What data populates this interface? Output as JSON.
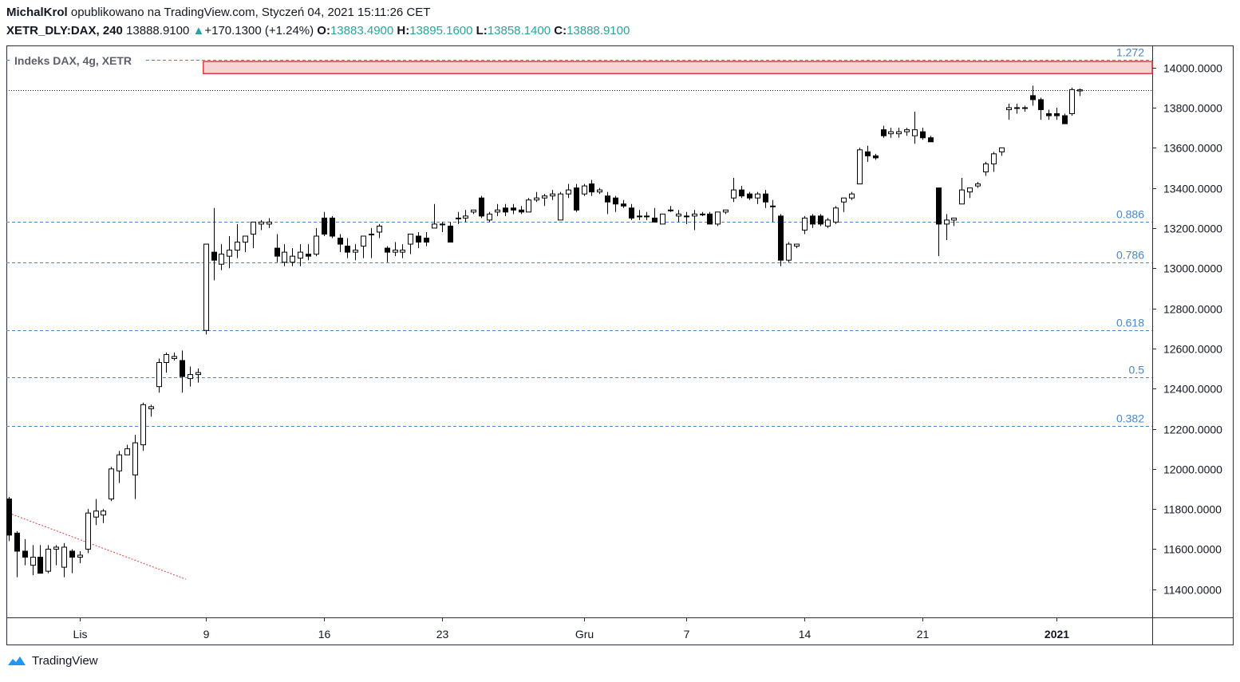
{
  "header": {
    "author": "MichalKrol",
    "published_text": "opublikowano na TradingView.com, Styczeń 04, 2021 15:11:26 CET",
    "symbol": "XETR_DLY:DAX, 240",
    "last_price": "13888.9100",
    "change_arrow": "▲",
    "change": "+170.1300 (+1.24%)",
    "open_label": "O:",
    "open": "13883.4900",
    "high_label": "H:",
    "high": "13895.1600",
    "low_label": "L:",
    "low": "13858.1400",
    "close_label": "C:",
    "close": "13888.9100"
  },
  "legend_title": "Indeks DAX, 4g, XETR",
  "footer": {
    "brand": "TradingView",
    "logo_icon": "tradingview-logo-icon"
  },
  "colors": {
    "fib_line": "#4a86c8",
    "up_body": "#ffffff",
    "down_body": "#000000",
    "zone_fill": "#f8d3d3",
    "zone_border": "#e03b3b",
    "trendline": "#e03b3b",
    "accent": "#26a69a"
  },
  "chart_data": {
    "type": "candlestick",
    "ylim": [
      11260,
      14110
    ],
    "y_ticks": [
      {
        "value": 11400,
        "label": "11400.0000"
      },
      {
        "value": 11600,
        "label": "11600.0000"
      },
      {
        "value": 11800,
        "label": "11800.0000"
      },
      {
        "value": 12000,
        "label": "12000.0000"
      },
      {
        "value": 12200,
        "label": "12200.0000"
      },
      {
        "value": 12400,
        "label": "12400.0000"
      },
      {
        "value": 12600,
        "label": "12600.0000"
      },
      {
        "value": 12800,
        "label": "12800.0000"
      },
      {
        "value": 13000,
        "label": "13000.0000"
      },
      {
        "value": 13200,
        "label": "13200.0000"
      },
      {
        "value": 13400,
        "label": "13400.0000"
      },
      {
        "value": 13600,
        "label": "13600.0000"
      },
      {
        "value": 13800,
        "label": "13800.0000"
      },
      {
        "value": 14000,
        "label": "14000.0000"
      }
    ],
    "x_ticks": [
      {
        "bar": 9,
        "label": "Lis",
        "bold": false
      },
      {
        "bar": 25,
        "label": "9",
        "bold": false
      },
      {
        "bar": 40,
        "label": "16",
        "bold": false
      },
      {
        "bar": 55,
        "label": "23",
        "bold": false
      },
      {
        "bar": 73,
        "label": "Gru",
        "bold": false
      },
      {
        "bar": 86,
        "label": "7",
        "bold": false
      },
      {
        "bar": 101,
        "label": "14",
        "bold": false
      },
      {
        "bar": 116,
        "label": "21",
        "bold": false
      },
      {
        "bar": 133,
        "label": "2021",
        "bold": true
      }
    ],
    "fib_levels": [
      {
        "label": "1.272",
        "value": 14040
      },
      {
        "label": "0.886",
        "value": 13230
      },
      {
        "label": "0.786",
        "value": 13030
      },
      {
        "label": "0.618",
        "value": 12690
      },
      {
        "label": "0.5",
        "value": 12455
      },
      {
        "label": "0.382",
        "value": 12215
      }
    ],
    "last_price_line": 13888.91,
    "resistance_zone": {
      "from_bar": 24.7,
      "low": 13970,
      "high": 14030
    },
    "trendline": {
      "start_bar": 0,
      "start_value": 11780,
      "end_bar": 22.5,
      "end_value": 11450
    },
    "ohlc": [
      [
        11850,
        11860,
        11640,
        11670
      ],
      [
        11680,
        11690,
        11460,
        11590
      ],
      [
        11590,
        11650,
        11520,
        11560
      ],
      [
        11520,
        11620,
        11470,
        11560
      ],
      [
        11560,
        11620,
        11480,
        11480
      ],
      [
        11490,
        11620,
        11480,
        11600
      ],
      [
        11600,
        11620,
        11520,
        11610
      ],
      [
        11510,
        11630,
        11460,
        11610
      ],
      [
        11590,
        11600,
        11480,
        11560
      ],
      [
        11560,
        11590,
        11530,
        11570
      ],
      [
        11600,
        11800,
        11580,
        11780
      ],
      [
        11760,
        11850,
        11720,
        11790
      ],
      [
        11770,
        11800,
        11730,
        11790
      ],
      [
        11850,
        12010,
        11840,
        12000
      ],
      [
        11990,
        12090,
        11930,
        12070
      ],
      [
        12070,
        12120,
        12070,
        12100
      ],
      [
        11970,
        12170,
        11850,
        12130
      ],
      [
        12120,
        12330,
        12090,
        12320
      ],
      [
        12300,
        12320,
        12260,
        12310
      ],
      [
        12410,
        12550,
        12380,
        12530
      ],
      [
        12530,
        12580,
        12480,
        12570
      ],
      [
        12550,
        12580,
        12540,
        12560
      ],
      [
        12540,
        12590,
        12380,
        12460
      ],
      [
        12450,
        12510,
        12410,
        12470
      ],
      [
        12470,
        12500,
        12430,
        12480
      ],
      [
        12690,
        13100,
        12670,
        13120
      ],
      [
        13080,
        13300,
        12940,
        13040
      ],
      [
        13020,
        13120,
        12990,
        13070
      ],
      [
        13060,
        13160,
        13000,
        13090
      ],
      [
        13090,
        13220,
        13050,
        13130
      ],
      [
        13130,
        13160,
        13080,
        13160
      ],
      [
        13170,
        13230,
        13100,
        13230
      ],
      [
        13220,
        13240,
        13190,
        13230
      ],
      [
        13220,
        13250,
        13200,
        13230
      ],
      [
        13100,
        13170,
        13030,
        13060
      ],
      [
        13030,
        13120,
        13010,
        13080
      ],
      [
        13030,
        13100,
        13010,
        13060
      ],
      [
        13050,
        13120,
        13010,
        13080
      ],
      [
        13070,
        13120,
        13040,
        13060
      ],
      [
        13070,
        13200,
        13060,
        13160
      ],
      [
        13250,
        13280,
        13160,
        13170
      ],
      [
        13250,
        13260,
        13150,
        13160
      ],
      [
        13150,
        13170,
        13080,
        13120
      ],
      [
        13110,
        13150,
        13050,
        13080
      ],
      [
        13080,
        13120,
        13040,
        13090
      ],
      [
        13110,
        13160,
        13050,
        13160
      ],
      [
        13170,
        13200,
        13050,
        13170
      ],
      [
        13180,
        13220,
        13150,
        13210
      ],
      [
        13100,
        13110,
        13030,
        13080
      ],
      [
        13080,
        13130,
        13060,
        13090
      ],
      [
        13080,
        13120,
        13050,
        13090
      ],
      [
        13120,
        13160,
        13070,
        13170
      ],
      [
        13160,
        13180,
        13100,
        13130
      ],
      [
        13150,
        13180,
        13110,
        13130
      ],
      [
        13200,
        13320,
        13200,
        13220
      ],
      [
        13220,
        13230,
        13180,
        13220
      ],
      [
        13210,
        13230,
        13130,
        13130
      ],
      [
        13250,
        13280,
        13220,
        13250
      ],
      [
        13250,
        13290,
        13230,
        13260
      ],
      [
        13280,
        13290,
        13270,
        13290
      ],
      [
        13350,
        13360,
        13250,
        13260
      ],
      [
        13240,
        13280,
        13230,
        13270
      ],
      [
        13280,
        13320,
        13260,
        13290
      ],
      [
        13300,
        13320,
        13260,
        13280
      ],
      [
        13300,
        13320,
        13270,
        13290
      ],
      [
        13290,
        13310,
        13270,
        13280
      ],
      [
        13280,
        13350,
        13280,
        13340
      ],
      [
        13340,
        13380,
        13330,
        13350
      ],
      [
        13350,
        13370,
        13310,
        13360
      ],
      [
        13360,
        13390,
        13340,
        13370
      ],
      [
        13240,
        13380,
        13240,
        13370
      ],
      [
        13370,
        13420,
        13350,
        13390
      ],
      [
        13400,
        13420,
        13280,
        13290
      ],
      [
        13370,
        13420,
        13360,
        13410
      ],
      [
        13420,
        13440,
        13360,
        13380
      ],
      [
        13380,
        13400,
        13370,
        13390
      ],
      [
        13360,
        13380,
        13270,
        13330
      ],
      [
        13350,
        13360,
        13280,
        13320
      ],
      [
        13320,
        13340,
        13300,
        13310
      ],
      [
        13300,
        13320,
        13240,
        13250
      ],
      [
        13260,
        13290,
        13240,
        13260
      ],
      [
        13260,
        13280,
        13240,
        13260
      ],
      [
        13250,
        13300,
        13230,
        13230
      ],
      [
        13220,
        13270,
        13220,
        13270
      ],
      [
        13290,
        13310,
        13280,
        13290
      ],
      [
        13260,
        13290,
        13230,
        13270
      ],
      [
        13260,
        13280,
        13220,
        13260
      ],
      [
        13260,
        13290,
        13190,
        13270
      ],
      [
        13270,
        13280,
        13260,
        13270
      ],
      [
        13270,
        13280,
        13220,
        13220
      ],
      [
        13220,
        13280,
        13210,
        13280
      ],
      [
        13280,
        13290,
        13270,
        13290
      ],
      [
        13350,
        13450,
        13330,
        13390
      ],
      [
        13390,
        13410,
        13350,
        13360
      ],
      [
        13370,
        13380,
        13340,
        13350
      ],
      [
        13350,
        13380,
        13320,
        13370
      ],
      [
        13370,
        13390,
        13300,
        13330
      ],
      [
        13310,
        13340,
        13230,
        13310
      ],
      [
        13260,
        13270,
        13010,
        13040
      ],
      [
        13040,
        13130,
        13030,
        13120
      ],
      [
        13110,
        13120,
        13100,
        13120
      ],
      [
        13190,
        13260,
        13170,
        13250
      ],
      [
        13260,
        13270,
        13200,
        13220
      ],
      [
        13260,
        13270,
        13210,
        13220
      ],
      [
        13210,
        13250,
        13200,
        13240
      ],
      [
        13230,
        13310,
        13220,
        13300
      ],
      [
        13330,
        13350,
        13280,
        13350
      ],
      [
        13350,
        13380,
        13340,
        13370
      ],
      [
        13420,
        13600,
        13420,
        13590
      ],
      [
        13580,
        13610,
        13530,
        13560
      ],
      [
        13560,
        13570,
        13540,
        13550
      ],
      [
        13690,
        13710,
        13650,
        13660
      ],
      [
        13670,
        13700,
        13650,
        13680
      ],
      [
        13670,
        13700,
        13650,
        13680
      ],
      [
        13680,
        13700,
        13660,
        13690
      ],
      [
        13660,
        13780,
        13620,
        13690
      ],
      [
        13680,
        13700,
        13640,
        13650
      ],
      [
        13650,
        13660,
        13630,
        13630
      ],
      [
        13400,
        13400,
        13060,
        13220
      ],
      [
        13220,
        13270,
        13140,
        13240
      ],
      [
        13240,
        13250,
        13210,
        13250
      ],
      [
        13320,
        13450,
        13320,
        13390
      ],
      [
        13380,
        13400,
        13350,
        13400
      ],
      [
        13410,
        13430,
        13400,
        13420
      ],
      [
        13480,
        13530,
        13460,
        13520
      ],
      [
        13520,
        13580,
        13480,
        13570
      ],
      [
        13580,
        13600,
        13560,
        13600
      ],
      [
        13790,
        13820,
        13740,
        13800
      ],
      [
        13800,
        13820,
        13770,
        13800
      ],
      [
        13800,
        13810,
        13780,
        13800
      ],
      [
        13860,
        13910,
        13810,
        13840
      ],
      [
        13840,
        13850,
        13740,
        13790
      ],
      [
        13770,
        13790,
        13740,
        13760
      ],
      [
        13770,
        13800,
        13740,
        13760
      ],
      [
        13760,
        13770,
        13720,
        13720
      ],
      [
        13770,
        13900,
        13760,
        13890
      ],
      [
        13883.49,
        13895.16,
        13858.14,
        13888.91
      ]
    ]
  }
}
